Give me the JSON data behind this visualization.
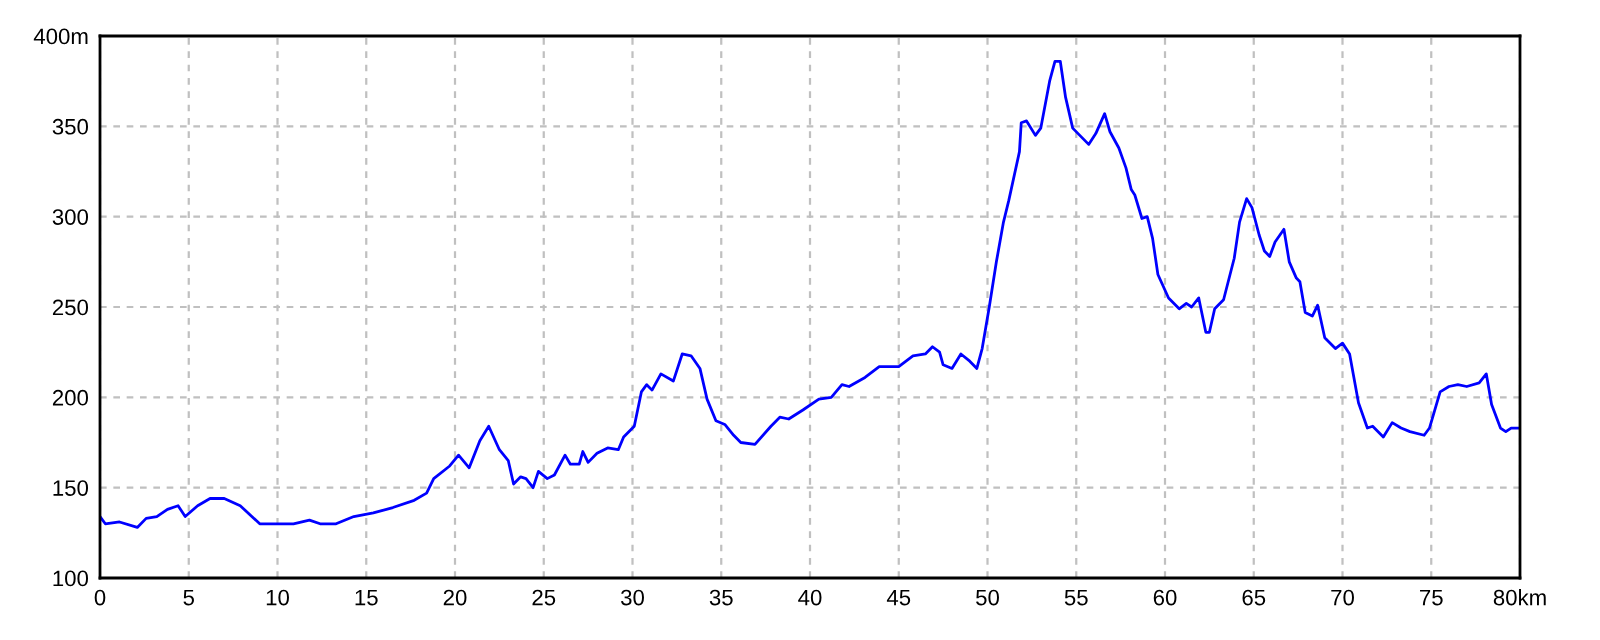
{
  "chart_data": {
    "type": "line",
    "x": [
      0,
      0.3,
      1.1,
      2.1,
      2.6,
      3.2,
      3.8,
      4.4,
      4.8,
      5.5,
      6.2,
      7,
      7.9,
      9,
      10.9,
      11.8,
      12.4,
      13.3,
      14.3,
      15.4,
      16.5,
      17.7,
      18.4,
      18.8,
      19.7,
      20.2,
      20.8,
      21.4,
      21.9,
      22.5,
      23,
      23.3,
      23.7,
      24,
      24.4,
      24.7,
      25.2,
      25.6,
      26.2,
      26.5,
      27,
      27.2,
      27.5,
      28,
      28.6,
      29.2,
      29.5,
      30.1,
      30.5,
      30.8,
      31.1,
      31.6,
      32.3,
      32.8,
      33.3,
      33.8,
      34.2,
      34.7,
      35.2,
      35.7,
      36.1,
      36.9,
      37.8,
      38.3,
      38.8,
      39.6,
      40.5,
      41.2,
      41.8,
      42.2,
      43.1,
      43.9,
      45,
      45.8,
      46.5,
      46.9,
      47.3,
      47.5,
      48,
      48.5,
      49,
      49.4,
      49.7,
      50.1,
      50.5,
      50.9,
      51.2,
      51.8,
      51.9,
      52.2,
      52.7,
      53,
      53.5,
      53.8,
      54.1,
      54.4,
      54.8,
      55.2,
      55.7,
      56.1,
      56.6,
      56.9,
      57.4,
      57.8,
      58.1,
      58.3,
      58.7,
      59,
      59.3,
      59.6,
      60.2,
      60.8,
      61.2,
      61.5,
      61.9,
      62.3,
      62.5,
      62.8,
      63.3,
      63.9,
      64.2,
      64.6,
      64.9,
      65.3,
      65.6,
      65.9,
      66.2,
      66.7,
      67,
      67.4,
      67.6,
      67.9,
      68.3,
      68.6,
      69,
      69.6,
      70,
      70.4,
      70.9,
      71.4,
      71.7,
      72.3,
      72.8,
      73.3,
      73.8,
      74.6,
      74.9,
      75.5,
      76,
      76.5,
      77,
      77.7,
      78.1,
      78.4,
      78.9,
      79.2,
      79.5,
      80
    ],
    "series": [
      {
        "color": "#0000ff",
        "values": [
          134,
          130,
          131,
          128,
          133,
          134,
          138,
          140,
          134,
          140,
          144,
          144,
          140,
          130,
          130,
          132,
          130,
          130,
          134,
          136,
          139,
          143,
          147,
          155,
          162,
          168,
          161,
          176,
          184,
          171,
          165,
          152,
          156,
          155,
          150,
          159,
          155,
          157,
          168,
          163,
          163,
          170,
          164,
          169,
          172,
          171,
          178,
          184,
          203,
          207,
          204,
          213,
          209,
          224,
          223,
          216,
          199,
          187,
          185,
          179,
          175,
          174,
          184,
          189,
          188,
          193,
          199,
          200,
          207,
          206,
          211,
          217,
          217,
          223,
          224,
          228,
          225,
          218,
          216,
          224,
          220,
          216,
          227,
          250,
          275,
          297,
          309,
          336,
          352,
          353,
          345,
          349,
          375,
          386,
          386,
          366,
          349,
          345,
          340,
          346,
          357,
          347,
          338,
          327,
          315,
          312,
          299,
          300,
          288,
          268,
          255,
          249,
          252,
          250,
          255,
          236,
          236,
          249,
          254,
          277,
          297,
          310,
          305,
          290,
          281,
          278,
          286,
          293,
          275,
          266,
          264,
          247,
          245,
          251,
          233,
          227,
          230,
          224,
          197,
          183,
          184,
          178,
          186,
          183,
          181,
          179,
          183,
          203,
          206,
          207,
          206,
          208,
          213,
          196,
          183,
          181,
          183,
          183
        ]
      }
    ],
    "xlim": [
      0,
      80
    ],
    "ylim": [
      100,
      400
    ],
    "xticks": [
      0,
      5,
      10,
      15,
      20,
      25,
      30,
      35,
      40,
      45,
      50,
      55,
      60,
      65,
      70,
      75,
      {
        "value": 80,
        "label": "80km"
      }
    ],
    "yticks": [
      100,
      150,
      200,
      250,
      300,
      350,
      {
        "value": 400,
        "label": "400m"
      }
    ],
    "grid": true,
    "marker": "none",
    "line_style": "solid"
  }
}
